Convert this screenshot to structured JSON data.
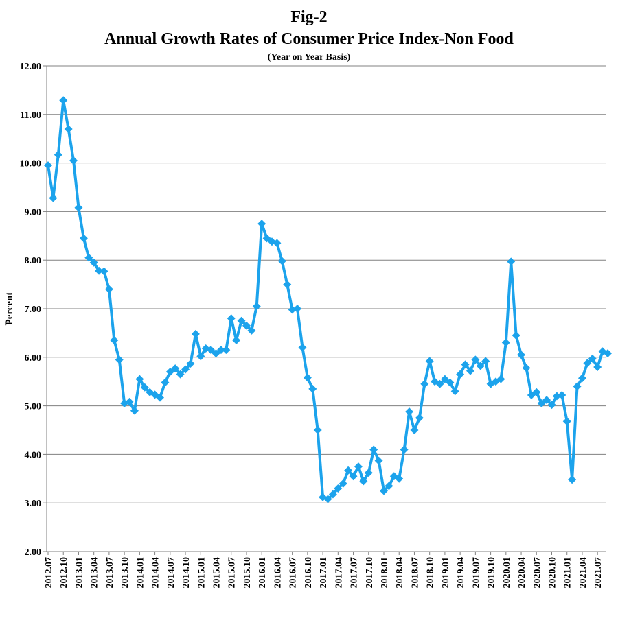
{
  "chart_data": {
    "type": "line",
    "title": "Fig-2",
    "subtitle": "Annual Growth Rates of Consumer Price Index-Non Food",
    "note": "(Year on Year Basis)",
    "ylabel": "Percent",
    "xlabel": "",
    "ylim": [
      2.0,
      12.0
    ],
    "yticks": [
      "2.00",
      "3.00",
      "4.00",
      "5.00",
      "6.00",
      "7.00",
      "8.00",
      "9.00",
      "10.00",
      "11.00",
      "12.00"
    ],
    "x_tick_labels": [
      "2012.07",
      "2012.10",
      "2013.01",
      "2013.04",
      "2013.07",
      "2013.10",
      "2014.01",
      "2014.04",
      "2014.07",
      "2014.10",
      "2015.01",
      "2015.04",
      "2015.07",
      "2015.10",
      "2016.01",
      "2016.04",
      "2016.07",
      "2016.10",
      "2017.01",
      "2017.04",
      "2017.07",
      "2017.10",
      "2018.01",
      "2018.04",
      "2018.07",
      "2018.10",
      "2019.01",
      "2019.04",
      "2019.07",
      "2019.10",
      "2020.01",
      "2020.04",
      "2020.07",
      "2020.10",
      "2021.01",
      "2021.04",
      "2021.07"
    ],
    "grid": true,
    "color": "#1ca3ec",
    "series": [
      {
        "values": [
          9.95,
          9.28,
          10.17,
          11.29,
          10.7,
          10.05,
          9.08,
          8.45,
          8.05,
          7.95,
          7.78,
          7.77,
          7.4,
          6.35,
          5.95,
          5.05,
          5.08,
          4.9,
          5.55,
          5.38,
          5.28,
          5.23,
          5.17,
          5.48,
          5.7,
          5.77,
          5.65,
          5.75,
          5.87,
          6.48,
          6.02,
          6.18,
          6.15,
          6.08,
          6.15,
          6.15,
          6.8,
          6.35,
          6.75,
          6.65,
          6.55,
          7.05,
          8.75,
          8.45,
          8.38,
          8.35,
          7.98,
          7.5,
          6.98,
          7.0,
          6.2,
          5.58,
          5.35,
          4.5,
          3.12,
          3.08,
          3.18,
          3.3,
          3.4,
          3.67,
          3.55,
          3.75,
          3.45,
          3.62,
          4.1,
          3.87,
          3.25,
          3.35,
          3.55,
          3.5,
          4.1,
          4.88,
          4.5,
          4.75,
          5.45,
          5.92,
          5.5,
          5.45,
          5.55,
          5.48,
          5.3,
          5.65,
          5.85,
          5.72,
          5.95,
          5.82,
          5.92,
          5.45,
          5.5,
          5.55,
          6.3,
          7.97,
          6.45,
          6.05,
          5.78,
          5.22,
          5.28,
          5.05,
          5.12,
          5.02,
          5.2,
          5.22,
          4.68,
          3.48,
          5.4,
          5.57,
          5.88,
          5.97,
          5.8,
          6.12,
          6.08
        ]
      }
    ]
  }
}
